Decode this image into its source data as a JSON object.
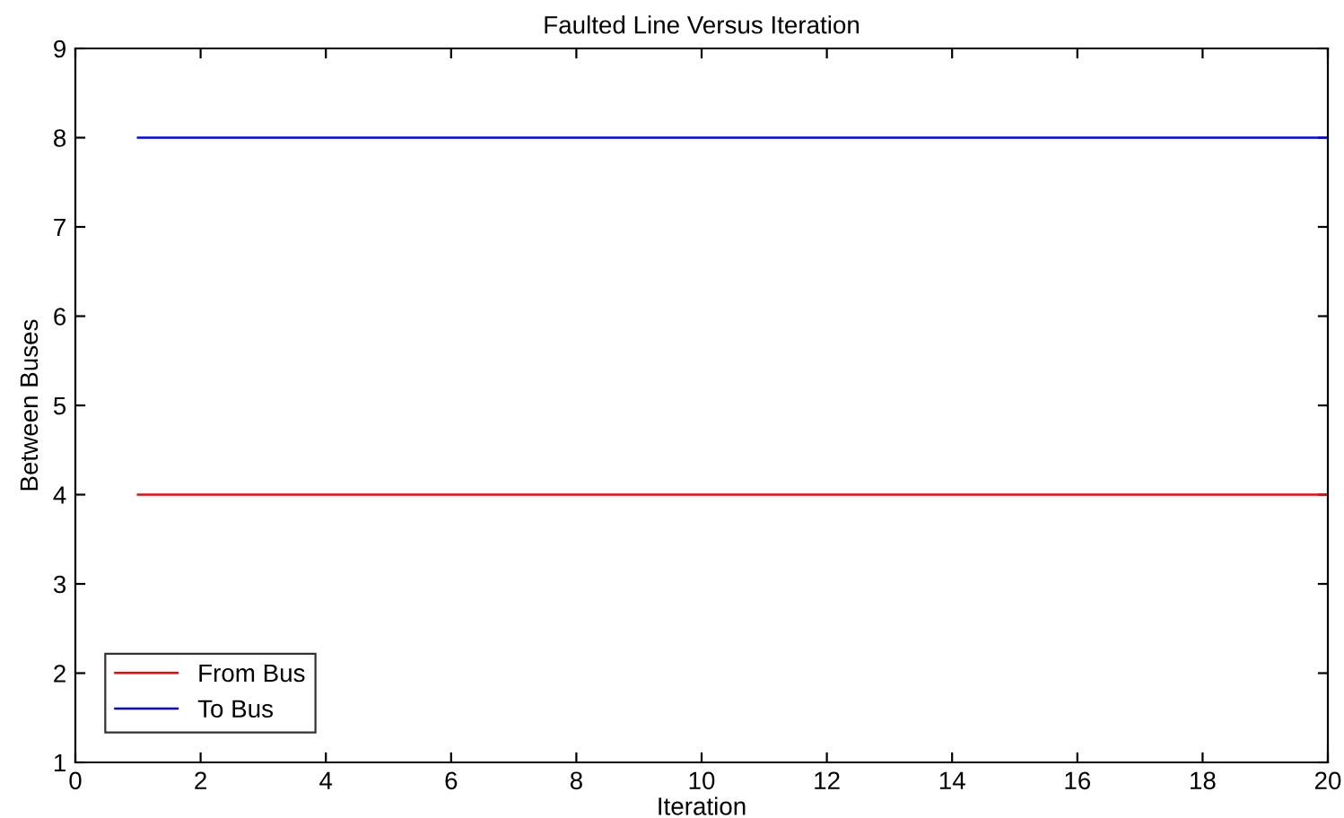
{
  "chart_data": {
    "type": "line",
    "title": "Faulted Line Versus Iteration",
    "xlabel": "Iteration",
    "ylabel": "Between Buses",
    "x": [
      1,
      20
    ],
    "series": [
      {
        "name": "From Bus",
        "color": "#ff0000",
        "values": [
          4,
          4
        ]
      },
      {
        "name": "To Bus",
        "color": "#0000ff",
        "values": [
          8,
          8
        ]
      }
    ],
    "xlim": [
      0,
      20
    ],
    "xticks": [
      0,
      2,
      4,
      6,
      8,
      10,
      12,
      14,
      16,
      18,
      20
    ],
    "ylim": [
      1,
      9
    ],
    "yticks": [
      1,
      2,
      3,
      4,
      5,
      6,
      7,
      8,
      9
    ],
    "grid": false,
    "legend": "bottom left",
    "line_style": "solid",
    "marker": "none"
  }
}
